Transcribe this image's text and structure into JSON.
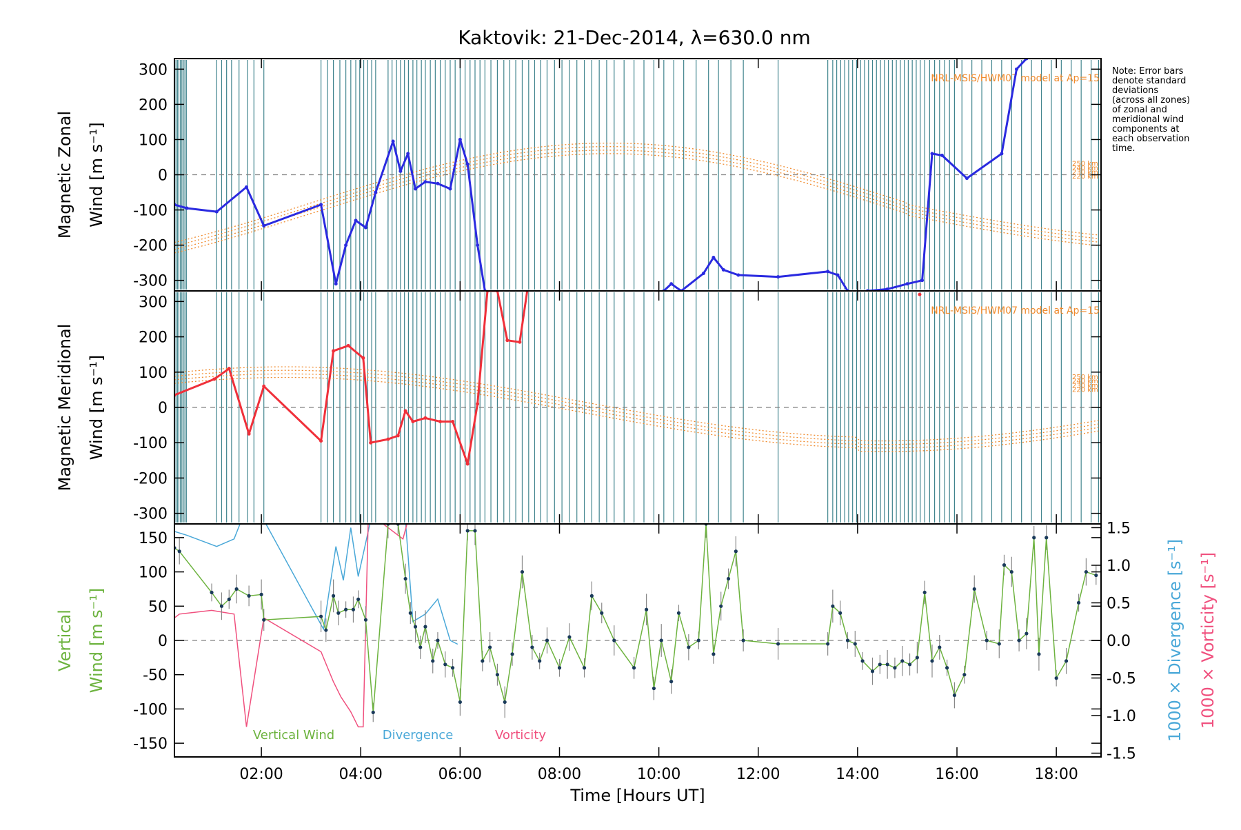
{
  "title": "Kaktovik: 21-Dec-2014, λ=630.0 nm",
  "note": [
    "Note: Error bars",
    "denote standard",
    "deviations",
    "(across all zones)",
    "of zonal and",
    "meridional wind",
    "components at",
    "each observation",
    "time."
  ],
  "colors": {
    "zonal": "#2a2ae0",
    "meridional": "#f0303a",
    "vertical": "#6db33f",
    "divergence": "#4aa8d8",
    "vorticity": "#f0507e",
    "model": "#f08a2c",
    "scan_lines": "#1f6f7a",
    "zero_line": "#808080"
  },
  "chart_data": [
    {
      "type": "line",
      "panel": "zonal",
      "ylabel_line1": "Magnetic Zonal",
      "ylabel_line2": "Wind [m s⁻¹]",
      "ylim": [
        -330,
        330
      ],
      "yticks": [
        -300,
        -200,
        -100,
        0,
        100,
        200,
        300
      ],
      "xlim": [
        0.25,
        18.9
      ],
      "model_label": "NRL-MSIS/HWM07 model at Ap=15",
      "model_alt_labels": [
        "250 km",
        "240 km",
        "230 km",
        "220 km"
      ],
      "series": [
        {
          "x": [
            0.25,
            0.5,
            1.1,
            1.7,
            2.05,
            3.2,
            3.5,
            3.7,
            3.9,
            4.1,
            4.3,
            4.65,
            4.8,
            4.95,
            5.1,
            5.3,
            5.55,
            5.8,
            6.0,
            6.15,
            6.35,
            6.5
          ],
          "y": [
            -85,
            -95,
            -105,
            -35,
            -145,
            -85,
            -310,
            -200,
            -130,
            -150,
            -50,
            95,
            10,
            60,
            -40,
            -20,
            -25,
            -40,
            100,
            30,
            -200,
            -330
          ]
        },
        {
          "x": [
            10.1,
            10.25,
            10.45,
            10.9,
            11.1,
            11.3,
            11.6,
            12.4,
            13.4,
            13.6,
            13.8
          ],
          "y": [
            -330,
            -310,
            -330,
            -280,
            -235,
            -270,
            -285,
            -290,
            -275,
            -285,
            -330
          ]
        },
        {
          "x": [
            14.2,
            14.6,
            15.0,
            15.3,
            15.5,
            15.7,
            16.2,
            16.9,
            17.2,
            17.4
          ],
          "y": [
            -330,
            -325,
            -310,
            -300,
            60,
            55,
            -10,
            60,
            300,
            330
          ]
        }
      ]
    },
    {
      "type": "line",
      "panel": "meridional",
      "ylabel_line1": "Magnetic Meridional",
      "ylabel_line2": "Wind [m s⁻¹]",
      "ylim": [
        -330,
        330
      ],
      "yticks": [
        -300,
        -200,
        -100,
        0,
        100,
        200,
        300
      ],
      "xlim": [
        0.25,
        18.9
      ],
      "model_label": "NRL-MSIS/HWM07 model at Ap=15",
      "model_alt_labels": [
        "250 km",
        "240 km",
        "230 km",
        "220 km"
      ],
      "series": [
        {
          "x": [
            0.25,
            1.05,
            1.35,
            1.75,
            2.05,
            3.2,
            3.45,
            3.75,
            4.05,
            4.2,
            4.55,
            4.75,
            4.9,
            5.05,
            5.3,
            5.6,
            5.85,
            6.15,
            6.35,
            6.55,
            6.75,
            6.95,
            7.2,
            7.35
          ],
          "y": [
            35,
            80,
            110,
            -75,
            60,
            -95,
            160,
            175,
            140,
            -100,
            -90,
            -80,
            -10,
            -40,
            -30,
            -40,
            -40,
            -160,
            10,
            330,
            330,
            190,
            185,
            330
          ]
        },
        {
          "x": [
            15.25
          ],
          "y": [
            320
          ]
        }
      ]
    },
    {
      "type": "line",
      "panel": "vertical",
      "ylabel_line1": "Vertical",
      "ylabel_line2": "Wind [m s⁻¹]",
      "ylim": [
        -170,
        170
      ],
      "yticks": [
        -150,
        -100,
        -50,
        0,
        50,
        100,
        150
      ],
      "right_axis_ylim": [
        -1.55,
        1.55
      ],
      "right_axis_ticks": [
        "-1.5",
        "-1.0",
        "-0.5",
        "0.0",
        "0.5",
        "1.0",
        "1.5"
      ],
      "right_label_divergence": "1000 × Divergence [s⁻¹]",
      "right_label_vorticity": "1000 × Vorticity [s⁻¹]",
      "legend": [
        "Vertical Wind",
        "Divergence",
        "Vorticity"
      ],
      "xlim": [
        0.25,
        18.9
      ],
      "xticks": [
        "02:00",
        "04:00",
        "06:00",
        "08:00",
        "10:00",
        "12:00",
        "14:00",
        "16:00",
        "18:00"
      ],
      "xtick_values": [
        2,
        4,
        6,
        8,
        10,
        12,
        14,
        16,
        18
      ],
      "xlabel": "Time [Hours UT]",
      "series": [
        {
          "name": "Vertical Wind",
          "x": [
            0.25,
            0.35,
            1.0,
            1.2,
            1.35,
            1.5,
            1.75,
            2.0,
            2.05,
            3.2,
            3.3,
            3.45,
            3.55,
            3.7,
            3.85,
            3.95,
            4.1,
            4.25,
            4.55,
            4.75,
            4.9,
            5.0,
            5.1,
            5.2,
            5.3,
            5.45,
            5.55,
            5.7,
            5.85,
            6.0,
            6.15,
            6.3,
            6.45,
            6.6,
            6.75,
            6.9,
            7.05,
            7.25,
            7.45,
            7.6,
            7.75,
            8.0,
            8.2,
            8.5,
            8.65,
            8.85,
            9.1,
            9.5,
            9.75,
            9.9,
            10.05,
            10.25,
            10.4,
            10.6,
            10.8,
            10.95,
            11.1,
            11.25,
            11.4,
            11.55,
            11.7,
            12.4,
            13.4,
            13.5,
            13.65,
            13.8,
            13.95,
            14.1,
            14.3,
            14.45,
            14.6,
            14.75,
            14.9,
            15.05,
            15.2,
            15.35,
            15.5,
            15.65,
            15.8,
            15.95,
            16.15,
            16.35,
            16.6,
            16.85,
            16.95,
            17.1,
            17.25,
            17.4,
            17.55,
            17.65,
            17.8,
            18.0,
            18.2,
            18.45,
            18.6,
            18.8
          ],
          "y": [
            135,
            130,
            70,
            50,
            60,
            75,
            65,
            67,
            30,
            35,
            15,
            65,
            40,
            45,
            45,
            60,
            30,
            -105,
            170,
            170,
            90,
            40,
            20,
            -10,
            20,
            -30,
            0,
            -35,
            -40,
            -90,
            160,
            160,
            -30,
            -10,
            -50,
            -90,
            -20,
            100,
            -10,
            -30,
            0,
            -40,
            5,
            -40,
            65,
            40,
            0,
            -40,
            45,
            -70,
            0,
            -60,
            40,
            -10,
            0,
            170,
            -20,
            50,
            90,
            130,
            0,
            -5,
            -5,
            50,
            40,
            0,
            -5,
            -30,
            -45,
            -35,
            -35,
            -40,
            -30,
            -35,
            -25,
            70,
            -30,
            -10,
            -40,
            -80,
            -50,
            75,
            0,
            -5,
            110,
            100,
            0,
            10,
            150,
            -20,
            150,
            -55,
            -30,
            55,
            100,
            95
          ]
        },
        {
          "name": "Divergence",
          "x": [
            0.25,
            0.5,
            1.1,
            1.45,
            1.6,
            2.05,
            3.25,
            3.5,
            3.65,
            3.8,
            3.95,
            4.2,
            4.9,
            5.05,
            5.3,
            5.55,
            5.8,
            5.95
          ],
          "y": [
            1.45,
            1.4,
            1.25,
            1.35,
            1.6,
            1.6,
            0.15,
            1.25,
            0.8,
            1.5,
            0.85,
            1.6,
            1.6,
            0.25,
            0.35,
            0.55,
            0.0,
            -0.05
          ]
        },
        {
          "name": "Vorticity",
          "x": [
            0.25,
            0.35,
            1.0,
            1.45,
            1.7,
            2.05,
            3.2,
            3.45,
            3.6,
            3.8,
            3.95,
            4.05,
            4.15,
            4.25,
            4.35,
            4.85,
            4.95
          ],
          "y": [
            0.3,
            0.35,
            0.4,
            0.35,
            -1.15,
            0.3,
            -0.15,
            -0.55,
            -0.75,
            -0.95,
            -1.15,
            -1.15,
            1.6,
            1.6,
            1.6,
            1.35,
            1.6
          ]
        }
      ]
    }
  ]
}
